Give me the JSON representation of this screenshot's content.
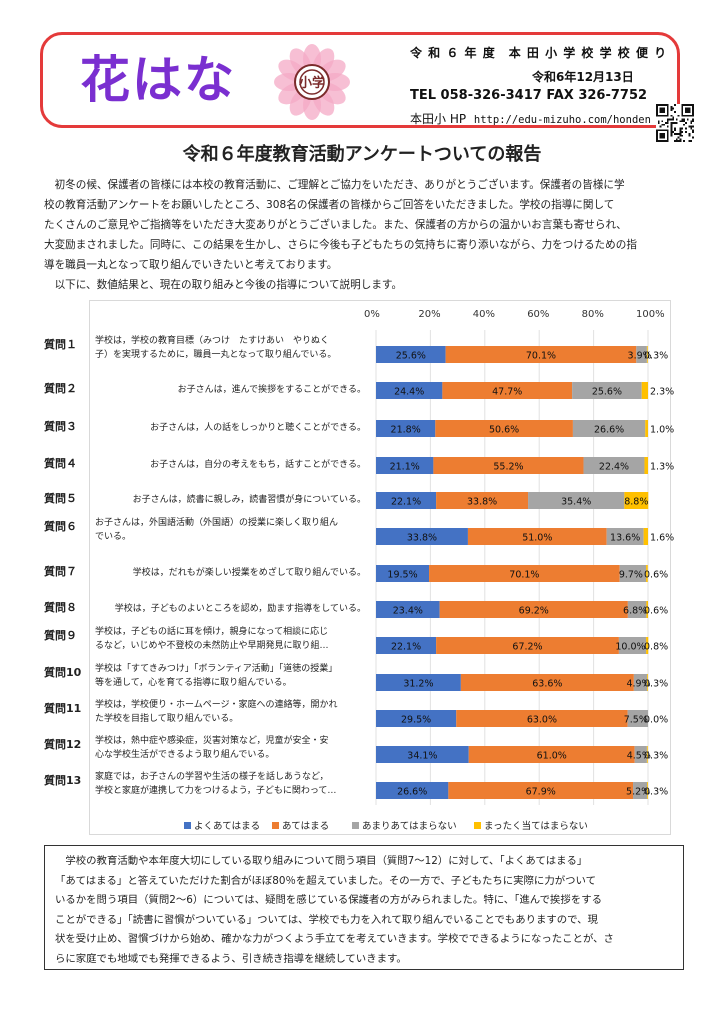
{
  "header": {
    "logo": "花はな",
    "school_title": "令 和 ６ 年 度　本 田 小 学 校 学 校 便 り",
    "date": "令和6年12月13日",
    "tel": "TEL  058-326-3417   FAX  326-7752",
    "hp_label": "本田小 HP",
    "hp_url": "http://edu-mizuho.com/honden",
    "seal_text": "小学",
    "colors": {
      "border": "#e43a3a",
      "logo": "#7a2fd0",
      "seal_petal": "#f4a9c6",
      "seal_center": "#7b2b2b"
    }
  },
  "title": "令和６年度教育活動アンケートついての報告",
  "intro": [
    "　初冬の候、保護者の皆様には本校の教育活動に、ご理解とご協力をいただき、ありがとうございます。保護者の皆様に学",
    "校の教育活動アンケートをお願いしたところ、308名の保護者の皆様からご回答をいただきました。学校の指導に関して",
    "たくさんのご意見やご指摘等をいただき大変ありがとうございました。また、保護者の方からの温かいお言葉も寄せられ、",
    "大変励まされました。同時に、この結果を生かし、さらに今後も子どもたちの気持ちに寄り添いながら、力をつけるための指",
    "導を職員一丸となって取り組んでいきたいと考えております。",
    "　以下に、数値結果と、現在の取り組みと今後の指導について説明します。"
  ],
  "chart_data": {
    "type": "bar",
    "orientation": "horizontal-stacked",
    "x_ticks": [
      "0%",
      "20%",
      "40%",
      "60%",
      "80%",
      "100%"
    ],
    "xlim": [
      0,
      100
    ],
    "colors": [
      "#4472c4",
      "#ed7d31",
      "#a5a5a5",
      "#ffc000"
    ],
    "legend_position": "bottom",
    "series": [
      {
        "name": "よくあてはまる"
      },
      {
        "name": "あてはまる"
      },
      {
        "name": "あまりあてはまらない"
      },
      {
        "name": "まったく当てはまらない"
      }
    ],
    "questions": [
      {
        "label": "質問１",
        "text": [
          "学校は，学校の教育目標（みつけ　たすけあい　やりぬく",
          "子）を実現するために，職員一丸となって取り組んでいる。"
        ],
        "values": [
          25.6,
          70.1,
          3.9,
          0.3
        ],
        "labels": [
          "25.6%",
          "70.1%",
          "3.9%",
          "0.3%"
        ]
      },
      {
        "label": "質問２",
        "text": [
          "お子さんは，進んで挨拶をすることができる。"
        ],
        "values": [
          24.4,
          47.7,
          25.6,
          2.3
        ],
        "labels": [
          "24.4%",
          "47.7%",
          "25.6%",
          "2.3%"
        ]
      },
      {
        "label": "質問３",
        "text": [
          "お子さんは，人の話をしっかりと聴くことができる。"
        ],
        "values": [
          21.8,
          50.6,
          26.6,
          1.0
        ],
        "labels": [
          "21.8%",
          "50.6%",
          "26.6%",
          "1.0%"
        ]
      },
      {
        "label": "質問４",
        "text": [
          "お子さんは，自分の考えをもち，話すことができる。"
        ],
        "values": [
          21.1,
          55.2,
          22.4,
          1.3
        ],
        "labels": [
          "21.1%",
          "55.2%",
          "22.4%",
          "1.3%"
        ]
      },
      {
        "label": "質問５",
        "text": [
          "お子さんは，読書に親しみ，読書習慣が身についている。"
        ],
        "values": [
          22.1,
          33.8,
          35.4,
          8.8
        ],
        "labels": [
          "22.1%",
          "33.8%",
          "35.4%",
          "8.8%"
        ]
      },
      {
        "label": "質問６",
        "text": [
          "お子さんは，外国語活動（外国語）の授業に楽しく取り組ん",
          "でいる。"
        ],
        "values": [
          33.8,
          51.0,
          13.6,
          1.6
        ],
        "labels": [
          "33.8%",
          "51.0%",
          "13.6%",
          "1.6%"
        ]
      },
      {
        "label": "質問７",
        "text": [
          "学校は，だれもが楽しい授業をめざして取り組んでいる。"
        ],
        "values": [
          19.5,
          70.1,
          9.7,
          0.6
        ],
        "labels": [
          "19.5%",
          "70.1%",
          "9.7%",
          "0.6%"
        ]
      },
      {
        "label": "質問８",
        "text": [
          "学校は，子どものよいところを認め，励ます指導をしている。"
        ],
        "values": [
          23.4,
          69.2,
          6.8,
          0.6
        ],
        "labels": [
          "23.4%",
          "69.2%",
          "6.8%",
          "0.6%"
        ]
      },
      {
        "label": "質問９",
        "text": [
          "学校は，子どもの話に耳を傾け，親身になって相談に応じ",
          "るなど，いじめや不登校の未然防止や早期発見に取り組…"
        ],
        "values": [
          22.1,
          67.2,
          10.0,
          0.8
        ],
        "labels": [
          "22.1%",
          "67.2%",
          "10.0%",
          "0.8%"
        ]
      },
      {
        "label": "質問10",
        "text": [
          "学校は「すてきみつけ」「ボランティア活動」「道徳の授業」",
          "等を通して，心を育てる指導に取り組んでいる。"
        ],
        "values": [
          31.2,
          63.6,
          4.9,
          0.3
        ],
        "labels": [
          "31.2%",
          "63.6%",
          "4.9%",
          "0.3%"
        ]
      },
      {
        "label": "質問11",
        "text": [
          "学校は，学校便り・ホームページ・家庭への連絡等，開かれ",
          "た学校を目指して取り組んでいる。"
        ],
        "values": [
          29.5,
          63.0,
          7.5,
          0.0
        ],
        "labels": [
          "29.5%",
          "63.0%",
          "7.5%",
          "0.0%"
        ]
      },
      {
        "label": "質問12",
        "text": [
          "学校は，熱中症や感染症，災害対策など，児童が安全・安",
          "心な学校生活ができるよう取り組んでいる。"
        ],
        "values": [
          34.1,
          61.0,
          4.5,
          0.3
        ],
        "labels": [
          "34.1%",
          "61.0%",
          "4.5%",
          "0.3%"
        ]
      },
      {
        "label": "質問13",
        "text": [
          "家庭では，お子さんの学習や生活の様子を話しあうなど，",
          "学校と家庭が連携して力をつけるよう，子どもに関わって…"
        ],
        "values": [
          26.6,
          67.9,
          5.2,
          0.3
        ],
        "labels": [
          "26.6%",
          "67.9%",
          "5.2%",
          "0.3%"
        ]
      }
    ]
  },
  "summary": [
    "　学校の教育活動や本年度大切にしている取り組みについて問う項目（質問7～12）に対して、「よくあてはまる」",
    "「あてはまる」と答えていただけた割合がほぼ80％を超えていました。その一方で、子どもたちに実際に力がついて",
    "いるかを問う項目（質問2～6）については、疑問を感じている保護者の方がみられました。特に、「進んで挨拶をする",
    "ことができる」「読書に習慣がついている」ついては、学校でも力を入れて取り組んでいることでもありますので、現",
    "状を受け止め、習慣づけから始め、確かな力がつくよう手立てを考えていきます。学校でできるようになったことが、さ",
    "らに家庭でも地域でも発揮できるよう、引き続き指導を継続していきます。"
  ]
}
